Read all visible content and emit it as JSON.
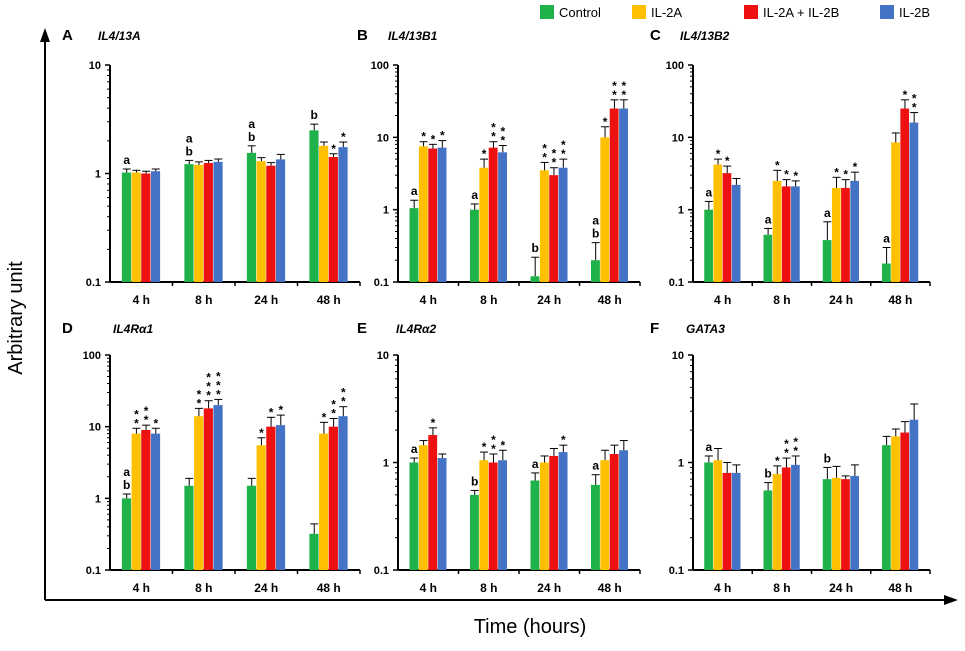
{
  "colors": {
    "Control": "#1fb24a",
    "IL-2A": "#ffc000",
    "IL-2A + IL-2B": "#ee1111",
    "IL-2B": "#4472c4"
  },
  "legend": [
    {
      "label": "Control",
      "color": "#1fb24a"
    },
    {
      "label": "IL-2A",
      "color": "#ffc000"
    },
    {
      "label": "IL-2A + IL-2B",
      "color": "#ee1111"
    },
    {
      "label": "IL-2B",
      "color": "#4472c4"
    }
  ],
  "axes": {
    "ylabel": "Arbitrary unit",
    "xlabel": "Time (hours)"
  },
  "chart_data": [
    {
      "type": "bar",
      "letter": "A",
      "title": "IL4/13A",
      "yscale": "log",
      "ylim": [
        0.1,
        10
      ],
      "yticks": [
        "0.1",
        "1",
        "10"
      ],
      "categories": [
        "4 h",
        "8 h",
        "24 h",
        "48 h"
      ],
      "series": [
        {
          "name": "Control",
          "values": [
            1.02,
            1.22,
            1.55,
            2.5
          ],
          "errors": [
            0.08,
            0.1,
            0.25,
            0.35
          ]
        },
        {
          "name": "IL-2A",
          "values": [
            1.02,
            1.2,
            1.3,
            1.8
          ],
          "errors": [
            0.05,
            0.08,
            0.1,
            0.15
          ]
        },
        {
          "name": "IL-2A + IL-2B",
          "values": [
            1.0,
            1.25,
            1.18,
            1.42
          ],
          "errors": [
            0.05,
            0.07,
            0.08,
            0.1
          ]
        },
        {
          "name": "IL-2B",
          "values": [
            1.05,
            1.28,
            1.35,
            1.75
          ],
          "errors": [
            0.05,
            0.08,
            0.15,
            0.2
          ]
        }
      ],
      "annotations": [
        {
          "category": 0,
          "series": 0,
          "text": [
            "a"
          ]
        },
        {
          "category": 1,
          "series": 0,
          "text": [
            "a",
            "b"
          ]
        },
        {
          "category": 2,
          "series": 0,
          "text": [
            "a",
            "b"
          ]
        },
        {
          "category": 3,
          "series": 0,
          "text": [
            "b"
          ]
        },
        {
          "category": 3,
          "series": 2,
          "text": [
            "*"
          ]
        },
        {
          "category": 3,
          "series": 3,
          "text": [
            "*"
          ]
        }
      ]
    },
    {
      "type": "bar",
      "letter": "B",
      "title": "IL4/13B1",
      "yscale": "log",
      "ylim": [
        0.1,
        100
      ],
      "yticks": [
        "0.1",
        "1",
        "10",
        "100"
      ],
      "categories": [
        "4 h",
        "8 h",
        "24 h",
        "48 h"
      ],
      "series": [
        {
          "name": "Control",
          "values": [
            1.05,
            1.0,
            0.12,
            0.2
          ],
          "errors": [
            0.3,
            0.2,
            0.1,
            0.15
          ]
        },
        {
          "name": "IL-2A",
          "values": [
            7.5,
            3.8,
            3.5,
            10
          ],
          "errors": [
            1.2,
            1.2,
            1.0,
            4.0
          ]
        },
        {
          "name": "IL-2A + IL-2B",
          "values": [
            7.0,
            7.2,
            3.0,
            25
          ],
          "errors": [
            1.0,
            1.5,
            0.8,
            8.0
          ]
        },
        {
          "name": "IL-2B",
          "values": [
            7.2,
            6.2,
            3.8,
            25
          ],
          "errors": [
            1.8,
            1.5,
            1.2,
            8.0
          ]
        }
      ],
      "annotations": [
        {
          "category": 0,
          "series": 0,
          "text": [
            "a"
          ]
        },
        {
          "category": 0,
          "series": 1,
          "text": [
            "*"
          ]
        },
        {
          "category": 0,
          "series": 2,
          "text": [
            "*"
          ]
        },
        {
          "category": 0,
          "series": 3,
          "text": [
            "*"
          ]
        },
        {
          "category": 1,
          "series": 0,
          "text": [
            "a"
          ]
        },
        {
          "category": 1,
          "series": 1,
          "text": [
            "*"
          ]
        },
        {
          "category": 1,
          "series": 2,
          "text": [
            "*",
            "*"
          ]
        },
        {
          "category": 1,
          "series": 3,
          "text": [
            "*",
            "*"
          ]
        },
        {
          "category": 2,
          "series": 0,
          "text": [
            "b"
          ]
        },
        {
          "category": 2,
          "series": 1,
          "text": [
            "*",
            "*"
          ]
        },
        {
          "category": 2,
          "series": 2,
          "text": [
            "*",
            "*"
          ]
        },
        {
          "category": 2,
          "series": 3,
          "text": [
            "*",
            "*"
          ]
        },
        {
          "category": 3,
          "series": 0,
          "text": [
            "a",
            "b"
          ]
        },
        {
          "category": 3,
          "series": 1,
          "text": [
            "*"
          ]
        },
        {
          "category": 3,
          "series": 2,
          "text": [
            "*",
            "*"
          ]
        },
        {
          "category": 3,
          "series": 3,
          "text": [
            "*",
            "*"
          ]
        }
      ]
    },
    {
      "type": "bar",
      "letter": "C",
      "title": "IL4/13B2",
      "yscale": "log",
      "ylim": [
        0.1,
        100
      ],
      "yticks": [
        "0.1",
        "1",
        "10",
        "100"
      ],
      "categories": [
        "4 h",
        "8 h",
        "24 h",
        "48 h"
      ],
      "series": [
        {
          "name": "Control",
          "values": [
            1.0,
            0.45,
            0.38,
            0.18
          ],
          "errors": [
            0.3,
            0.1,
            0.3,
            0.12
          ]
        },
        {
          "name": "IL-2A",
          "values": [
            4.2,
            2.5,
            2.0,
            8.5
          ],
          "errors": [
            0.8,
            1.0,
            0.8,
            3.0
          ]
        },
        {
          "name": "IL-2A + IL-2B",
          "values": [
            3.2,
            2.1,
            2.0,
            25
          ],
          "errors": [
            0.8,
            0.5,
            0.6,
            8.0
          ]
        },
        {
          "name": "IL-2B",
          "values": [
            2.2,
            2.1,
            2.5,
            16
          ],
          "errors": [
            0.5,
            0.4,
            0.8,
            6.0
          ]
        }
      ],
      "annotations": [
        {
          "category": 0,
          "series": 0,
          "text": [
            "a"
          ]
        },
        {
          "category": 0,
          "series": 1,
          "text": [
            "*"
          ]
        },
        {
          "category": 0,
          "series": 2,
          "text": [
            "*"
          ]
        },
        {
          "category": 1,
          "series": 0,
          "text": [
            "a"
          ]
        },
        {
          "category": 1,
          "series": 1,
          "text": [
            "*"
          ]
        },
        {
          "category": 1,
          "series": 2,
          "text": [
            "*"
          ]
        },
        {
          "category": 1,
          "series": 3,
          "text": [
            "*"
          ]
        },
        {
          "category": 2,
          "series": 0,
          "text": [
            "a"
          ]
        },
        {
          "category": 2,
          "series": 1,
          "text": [
            "*"
          ]
        },
        {
          "category": 2,
          "series": 2,
          "text": [
            "*"
          ]
        },
        {
          "category": 2,
          "series": 3,
          "text": [
            "*"
          ]
        },
        {
          "category": 3,
          "series": 0,
          "text": [
            "a"
          ]
        },
        {
          "category": 3,
          "series": 2,
          "text": [
            "*"
          ]
        },
        {
          "category": 3,
          "series": 3,
          "text": [
            "*",
            "*"
          ]
        }
      ]
    },
    {
      "type": "bar",
      "letter": "D",
      "title": "IL4Rα1",
      "yscale": "log",
      "ylim": [
        0.1,
        100
      ],
      "yticks": [
        "0.1",
        "1",
        "10",
        "100"
      ],
      "categories": [
        "4 h",
        "8 h",
        "24 h",
        "48 h"
      ],
      "series": [
        {
          "name": "Control",
          "values": [
            1.0,
            1.5,
            1.5,
            0.32
          ],
          "errors": [
            0.15,
            0.4,
            0.4,
            0.12
          ]
        },
        {
          "name": "IL-2A",
          "values": [
            8.0,
            14,
            5.5,
            8.0
          ],
          "errors": [
            1.5,
            4,
            1.5,
            3.5
          ]
        },
        {
          "name": "IL-2A + IL-2B",
          "values": [
            9.0,
            18,
            10,
            10
          ],
          "errors": [
            1.5,
            5,
            3.5,
            3.0
          ]
        },
        {
          "name": "IL-2B",
          "values": [
            8.0,
            20,
            10.5,
            14
          ],
          "errors": [
            1.5,
            4,
            4.0,
            5.0
          ]
        }
      ],
      "annotations": [
        {
          "category": 0,
          "series": 0,
          "text": [
            "a",
            "b"
          ]
        },
        {
          "category": 0,
          "series": 1,
          "text": [
            "*",
            "*"
          ]
        },
        {
          "category": 0,
          "series": 2,
          "text": [
            "*",
            "*"
          ]
        },
        {
          "category": 0,
          "series": 3,
          "text": [
            "*"
          ]
        },
        {
          "category": 1,
          "series": 1,
          "text": [
            "*",
            "*"
          ]
        },
        {
          "category": 1,
          "series": 2,
          "text": [
            "*",
            "*",
            "*"
          ]
        },
        {
          "category": 1,
          "series": 3,
          "text": [
            "*",
            "*",
            "*"
          ]
        },
        {
          "category": 2,
          "series": 1,
          "text": [
            "*"
          ]
        },
        {
          "category": 2,
          "series": 2,
          "text": [
            "*"
          ]
        },
        {
          "category": 2,
          "series": 3,
          "text": [
            "*"
          ]
        },
        {
          "category": 3,
          "series": 1,
          "text": [
            "*"
          ]
        },
        {
          "category": 3,
          "series": 2,
          "text": [
            "*",
            "*"
          ]
        },
        {
          "category": 3,
          "series": 3,
          "text": [
            "*",
            "*"
          ]
        }
      ]
    },
    {
      "type": "bar",
      "letter": "E",
      "title": "IL4Rα2",
      "yscale": "log",
      "ylim": [
        0.1,
        10
      ],
      "yticks": [
        "0.1",
        "1",
        "10"
      ],
      "categories": [
        "4 h",
        "8 h",
        "24 h",
        "48 h"
      ],
      "series": [
        {
          "name": "Control",
          "values": [
            1.0,
            0.5,
            0.68,
            0.62
          ],
          "errors": [
            0.1,
            0.05,
            0.12,
            0.15
          ]
        },
        {
          "name": "IL-2A",
          "values": [
            1.45,
            1.05,
            1.0,
            1.05
          ],
          "errors": [
            0.15,
            0.2,
            0.15,
            0.25
          ]
        },
        {
          "name": "IL-2A + IL-2B",
          "values": [
            1.8,
            1.0,
            1.15,
            1.2
          ],
          "errors": [
            0.3,
            0.2,
            0.2,
            0.25
          ]
        },
        {
          "name": "IL-2B",
          "values": [
            1.1,
            1.05,
            1.25,
            1.3
          ],
          "errors": [
            0.1,
            0.25,
            0.2,
            0.3
          ]
        }
      ],
      "annotations": [
        {
          "category": 0,
          "series": 0,
          "text": [
            "a"
          ]
        },
        {
          "category": 0,
          "series": 2,
          "text": [
            "*"
          ]
        },
        {
          "category": 1,
          "series": 0,
          "text": [
            "b"
          ]
        },
        {
          "category": 1,
          "series": 1,
          "text": [
            "*"
          ]
        },
        {
          "category": 1,
          "series": 2,
          "text": [
            "*",
            "*"
          ]
        },
        {
          "category": 1,
          "series": 3,
          "text": [
            "*"
          ]
        },
        {
          "category": 2,
          "series": 0,
          "text": [
            "a"
          ]
        },
        {
          "category": 2,
          "series": 3,
          "text": [
            "*"
          ]
        },
        {
          "category": 3,
          "series": 0,
          "text": [
            "a"
          ]
        }
      ]
    },
    {
      "type": "bar",
      "letter": "F",
      "title": "GATA3",
      "yscale": "log",
      "ylim": [
        0.1,
        10
      ],
      "yticks": [
        "0.1",
        "1",
        "10"
      ],
      "categories": [
        "4 h",
        "8 h",
        "24 h",
        "48 h"
      ],
      "series": [
        {
          "name": "Control",
          "values": [
            1.0,
            0.55,
            0.7,
            1.45
          ],
          "errors": [
            0.15,
            0.1,
            0.2,
            0.3
          ]
        },
        {
          "name": "IL-2A",
          "values": [
            1.05,
            0.78,
            0.72,
            1.75
          ],
          "errors": [
            0.3,
            0.15,
            0.2,
            0.3
          ]
        },
        {
          "name": "IL-2A + IL-2B",
          "values": [
            0.8,
            0.9,
            0.7,
            1.9
          ],
          "errors": [
            0.2,
            0.2,
            0.05,
            0.5
          ]
        },
        {
          "name": "IL-2B",
          "values": [
            0.8,
            0.95,
            0.75,
            2.5
          ],
          "errors": [
            0.15,
            0.2,
            0.2,
            1.0
          ]
        }
      ],
      "annotations": [
        {
          "category": 0,
          "series": 0,
          "text": [
            "a"
          ]
        },
        {
          "category": 1,
          "series": 0,
          "text": [
            "b"
          ]
        },
        {
          "category": 1,
          "series": 1,
          "text": [
            "*"
          ]
        },
        {
          "category": 1,
          "series": 2,
          "text": [
            "*",
            "*"
          ]
        },
        {
          "category": 1,
          "series": 3,
          "text": [
            "*",
            "*"
          ]
        },
        {
          "category": 2,
          "series": 0,
          "text": [
            "b"
          ]
        }
      ]
    }
  ]
}
